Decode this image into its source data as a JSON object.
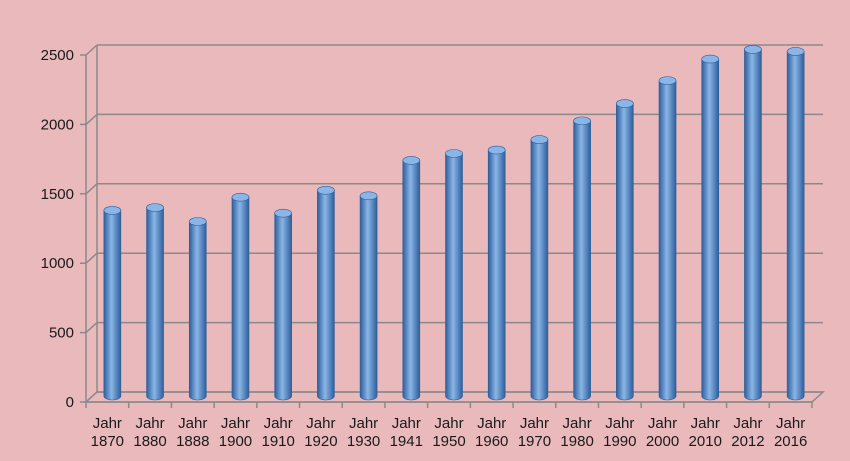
{
  "chart_data": {
    "type": "bar",
    "categories": [
      [
        "Jahr",
        "1870"
      ],
      [
        "Jahr",
        "1880"
      ],
      [
        "Jahr",
        "1888"
      ],
      [
        "Jahr",
        "1900"
      ],
      [
        "Jahr",
        "1910"
      ],
      [
        "Jahr",
        "1920"
      ],
      [
        "Jahr",
        "1930"
      ],
      [
        "Jahr",
        "1941"
      ],
      [
        "Jahr",
        "1950"
      ],
      [
        "Jahr",
        "1960"
      ],
      [
        "Jahr",
        "1970"
      ],
      [
        "Jahr",
        "1980"
      ],
      [
        "Jahr",
        "1990"
      ],
      [
        "Jahr",
        "2000"
      ],
      [
        "Jahr",
        "2010"
      ],
      [
        "Jahr",
        "2012"
      ],
      [
        "Jahr",
        "2016"
      ]
    ],
    "values": [
      1330,
      1350,
      1250,
      1425,
      1310,
      1475,
      1435,
      1690,
      1740,
      1765,
      1840,
      1975,
      2100,
      2265,
      2420,
      2490,
      2475
    ],
    "title": "",
    "xlabel": "",
    "ylabel": "",
    "ylim": [
      0,
      2500
    ],
    "yticks": [
      "0",
      "500",
      "1000",
      "1500",
      "2000",
      "2500"
    ],
    "grid": true,
    "legend": "none",
    "colors": {
      "background": "#e9b9bc",
      "bar": "#4f86c6",
      "bar_dark": "#2d5f9c",
      "bar_light": "#8ab5e6",
      "grid": "#8a8a8a"
    }
  }
}
